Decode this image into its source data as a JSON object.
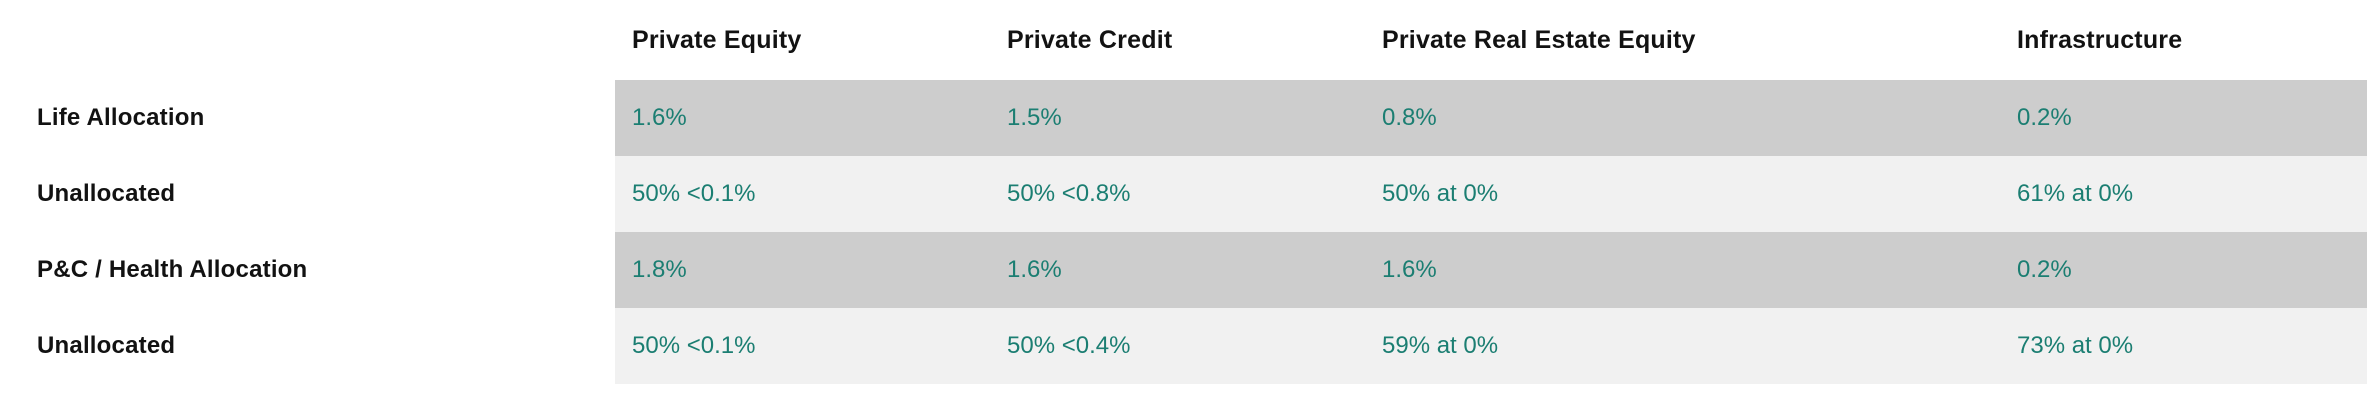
{
  "chart_data": {
    "type": "table",
    "columns": [
      "Private Equity",
      "Private Credit",
      "Private Real Estate Equity",
      "Infrastructure"
    ],
    "rows": [
      {
        "label": "Life Allocation",
        "values": [
          "1.6%",
          "1.5%",
          "0.8%",
          "0.2%"
        ]
      },
      {
        "label": "Unallocated",
        "values": [
          "50% <0.1%",
          "50% <0.8%",
          "50% at 0%",
          "61% at 0%"
        ]
      },
      {
        "label": "P&C / Health Allocation",
        "values": [
          "1.8%",
          "1.6%",
          "1.6%",
          "0.2%"
        ]
      },
      {
        "label": "Unallocated",
        "values": [
          "50% <0.1%",
          "50% <0.4%",
          "59% at 0%",
          "73% at 0%"
        ]
      }
    ],
    "layout": {
      "row_shading": [
        "dark",
        "light",
        "dark",
        "light"
      ],
      "grid": "off",
      "legend": "none",
      "title": ""
    }
  },
  "colors": {
    "value_text": "#1b7e72",
    "label_text": "#121212",
    "row_dark": "#cdcdcd",
    "row_light": "#f1f1f1",
    "background": "#ffffff"
  }
}
